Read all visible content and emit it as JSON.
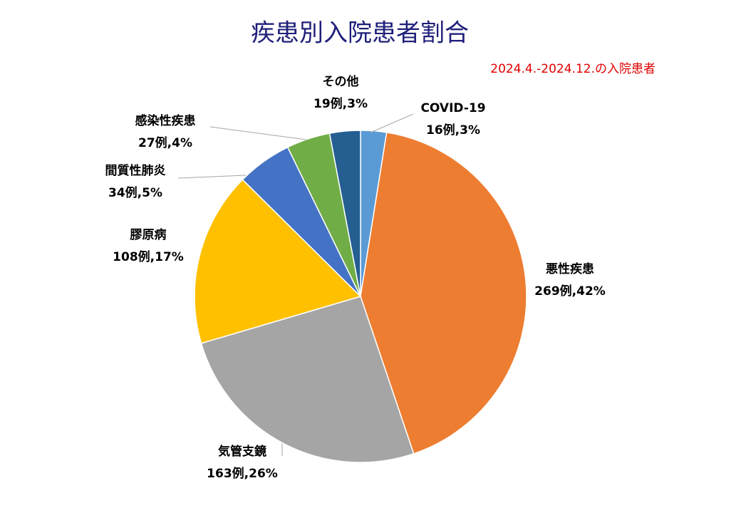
{
  "chart_data": {
    "type": "pie",
    "title": "疾患別入院患者割合",
    "subtitle": "2024.4.-2024.12.の入院患者",
    "categories": [
      "COVID-19",
      "悪性疾患",
      "気管支鏡",
      "膠原病",
      "間質性肺炎",
      "感染性疾患",
      "その他"
    ],
    "values": [
      16,
      269,
      163,
      108,
      34,
      27,
      19
    ],
    "value_labels": [
      "16例,3%",
      "269例,42%",
      "163例,26%",
      "108例,17%",
      "34例,5%",
      "27例,4%",
      "19例,3%"
    ],
    "colors": [
      "#5b9bd5",
      "#ed7d31",
      "#a5a5a5",
      "#ffc000",
      "#4472c4",
      "#70ad47",
      "#255e91"
    ]
  }
}
